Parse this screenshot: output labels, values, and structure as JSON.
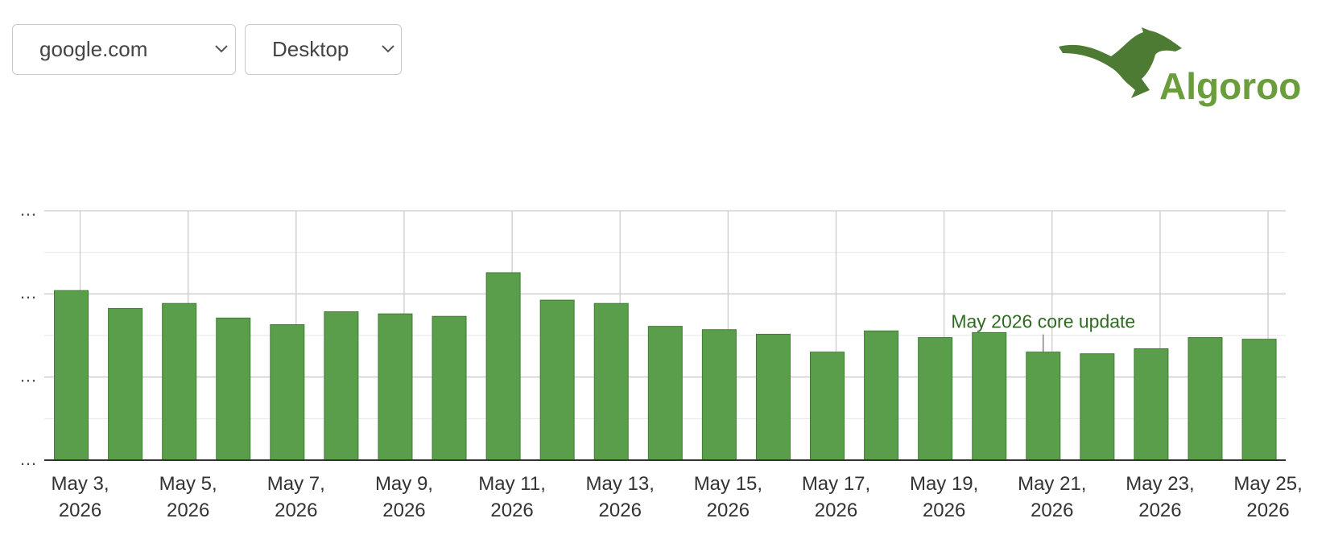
{
  "controls": {
    "site": "google.com",
    "device": "Desktop"
  },
  "logo": "Algoroo",
  "chart_data": {
    "type": "bar",
    "categories": [
      "May 3, 2026",
      null,
      "May 5, 2026",
      null,
      "May 7, 2026",
      null,
      "May 9, 2026",
      null,
      "May 11, 2026",
      null,
      "May 13, 2026",
      null,
      "May 15, 2026",
      null,
      "May 17, 2026",
      null,
      "May 19, 2026",
      null,
      "May 21, 2026",
      null,
      "May 23, 2026",
      null,
      "May 25, 2026"
    ],
    "values": [
      4.08,
      3.65,
      3.77,
      3.42,
      3.26,
      3.57,
      3.52,
      3.46,
      4.51,
      3.85,
      3.77,
      3.22,
      3.14,
      3.03,
      2.6,
      3.11,
      2.95,
      3.07,
      2.6,
      2.56,
      2.68,
      2.95,
      2.91
    ],
    "color": "#5a9e4b",
    "ylim": [
      0,
      6
    ],
    "yticks": [
      {
        "value": 0,
        "label": "…"
      },
      {
        "value": 2,
        "label": "…"
      },
      {
        "value": 4,
        "label": "…"
      },
      {
        "value": 6,
        "label": "…"
      }
    ],
    "minor_yticks": [
      1,
      3,
      5
    ],
    "grid": true,
    "annotations": [
      {
        "label": "May 2026 core update",
        "at": "May 21, 2026"
      }
    ]
  }
}
